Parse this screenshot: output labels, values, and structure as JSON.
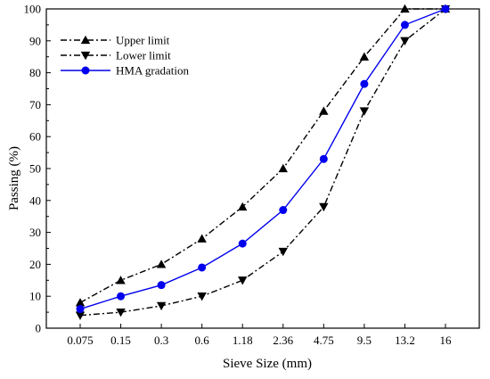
{
  "chart_data": {
    "type": "line",
    "title": "",
    "xlabel": "Sieve Size (mm)",
    "ylabel": "Passing (%)",
    "categories": [
      "0.075",
      "0.15",
      "0.3",
      "0.6",
      "1.18",
      "2.36",
      "4.75",
      "9.5",
      "13.2",
      "16"
    ],
    "ylim": [
      0,
      100
    ],
    "yticks": [
      0,
      10,
      20,
      30,
      40,
      50,
      60,
      70,
      80,
      90,
      100
    ],
    "grid": false,
    "legend_position": "top-left",
    "series": [
      {
        "name": "Upper limit",
        "values": [
          8,
          15,
          20,
          28,
          38,
          50,
          68,
          85,
          100,
          100
        ],
        "color": "#000000",
        "line_style": "dash-dot",
        "marker": "triangle-up"
      },
      {
        "name": "Lower limit",
        "values": [
          4,
          5,
          7,
          10,
          15,
          24,
          38,
          68,
          90,
          100
        ],
        "color": "#000000",
        "line_style": "dash-dot",
        "marker": "triangle-down"
      },
      {
        "name": "HMA gradation",
        "values": [
          6,
          10,
          13.5,
          19,
          26.5,
          37,
          53,
          76.5,
          95,
          100
        ],
        "color": "#0000ee",
        "line_style": "solid",
        "marker": "circle"
      }
    ]
  }
}
